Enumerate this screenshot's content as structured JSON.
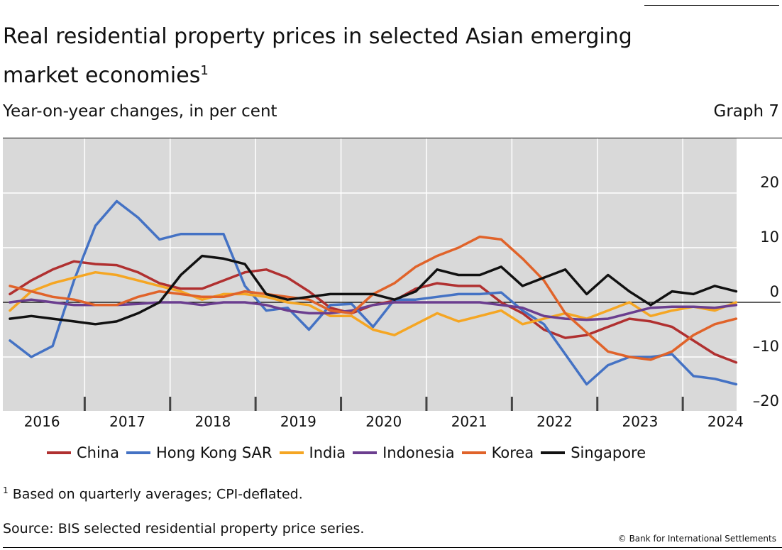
{
  "header": {
    "title": "Real residential property prices in selected Asian emerging market economies",
    "title_note": "1",
    "subtitle": "Year-on-year changes, in per cent",
    "graph_label": "Graph 7"
  },
  "footer": {
    "footnote_mark": "1",
    "footnote": "Based on quarterly averages; CPI-deflated.",
    "source": "Source: BIS selected residential property price series.",
    "copyright": "© Bank for International Settlements"
  },
  "chart_data": {
    "type": "line",
    "title": "Real residential property prices in selected Asian emerging market economies",
    "ylim": [
      -20,
      28
    ],
    "yticks": [
      20,
      10,
      0,
      -10,
      -20
    ],
    "ytick_labels": [
      "20",
      "10",
      "0",
      "–10",
      "–20"
    ],
    "year_labels": [
      "2016",
      "2017",
      "2018",
      "2019",
      "2020",
      "2021",
      "2022",
      "2023",
      "2024"
    ],
    "x_start": "2016-Q1",
    "x_end": "2024-Q2",
    "grid": true,
    "legend_position": "bottom",
    "background": "#d9d9d9",
    "series": [
      {
        "name": "China",
        "color": "#b03030",
        "values": [
          1.5,
          4,
          6,
          7.5,
          7,
          6.8,
          5.5,
          3.5,
          2.5,
          2.5,
          4,
          5.5,
          6,
          4.5,
          2,
          -1,
          -2,
          -0.5,
          0.3,
          2.5,
          3.5,
          3,
          3,
          0,
          -2,
          -5,
          -6.5,
          -6,
          -4.5,
          -3,
          -3.5,
          -4.5,
          -7,
          -9.5,
          -11
        ]
      },
      {
        "name": "Hong Kong SAR",
        "color": "#4472c4",
        "values": [
          -7,
          -10,
          -8,
          4,
          14,
          18.5,
          15.5,
          11.5,
          12.5,
          12.5,
          12.5,
          3,
          -1.5,
          -1,
          -5,
          -0.5,
          -0.3,
          -4.5,
          0.5,
          0.5,
          1,
          1.5,
          1.5,
          1.8,
          -1.5,
          -4,
          -9.5,
          -15,
          -11.5,
          -10,
          -10,
          -9.5,
          -13.5,
          -14,
          -15
        ]
      },
      {
        "name": "India",
        "color": "#f5a623",
        "values": [
          -1.5,
          2,
          3.5,
          4.5,
          5.5,
          5,
          4,
          3,
          2,
          0.5,
          1.5,
          1.5,
          1,
          0,
          -0.5,
          -2.5,
          -2.5,
          -5,
          -6,
          -4,
          -2,
          -3.5,
          -2.5,
          -1.5,
          -4,
          -3,
          -2,
          -3,
          -1.5,
          0,
          -2.5,
          -1.5,
          -0.8,
          -1.5,
          0
        ]
      },
      {
        "name": "Indonesia",
        "color": "#6b3e8f",
        "values": [
          0,
          0.5,
          0,
          -0.5,
          -0.5,
          -0.5,
          -0.3,
          0,
          0,
          -0.5,
          0,
          0,
          -0.5,
          -1.5,
          -2,
          -2,
          -1.5,
          -0.5,
          0,
          0,
          0,
          0,
          0,
          -0.5,
          -1,
          -2.5,
          -3,
          -3.2,
          -3,
          -2,
          -1,
          -0.8,
          -0.8,
          -1,
          -0.5
        ]
      },
      {
        "name": "Korea",
        "color": "#e0632a",
        "values": [
          3,
          2,
          1,
          0.5,
          -0.5,
          -0.5,
          1,
          2,
          1.5,
          1,
          1,
          2,
          1.5,
          1,
          0.5,
          -1.5,
          -2,
          1.5,
          3.5,
          6.5,
          8.5,
          10,
          12,
          11.5,
          8,
          4,
          -2,
          -5.5,
          -9,
          -10,
          -10.5,
          -9,
          -6,
          -4,
          -3
        ]
      },
      {
        "name": "Singapore",
        "color": "#111111",
        "values": [
          -3,
          -2.5,
          -3,
          -3.5,
          -4,
          -3.5,
          -2,
          0,
          5,
          8.5,
          8,
          7,
          1.5,
          0.5,
          1,
          1.5,
          1.5,
          1.5,
          0.5,
          2,
          6,
          5,
          5,
          6.5,
          3,
          4.5,
          6,
          1.5,
          5,
          2,
          -0.5,
          2,
          1.5,
          3,
          2
        ]
      }
    ]
  }
}
